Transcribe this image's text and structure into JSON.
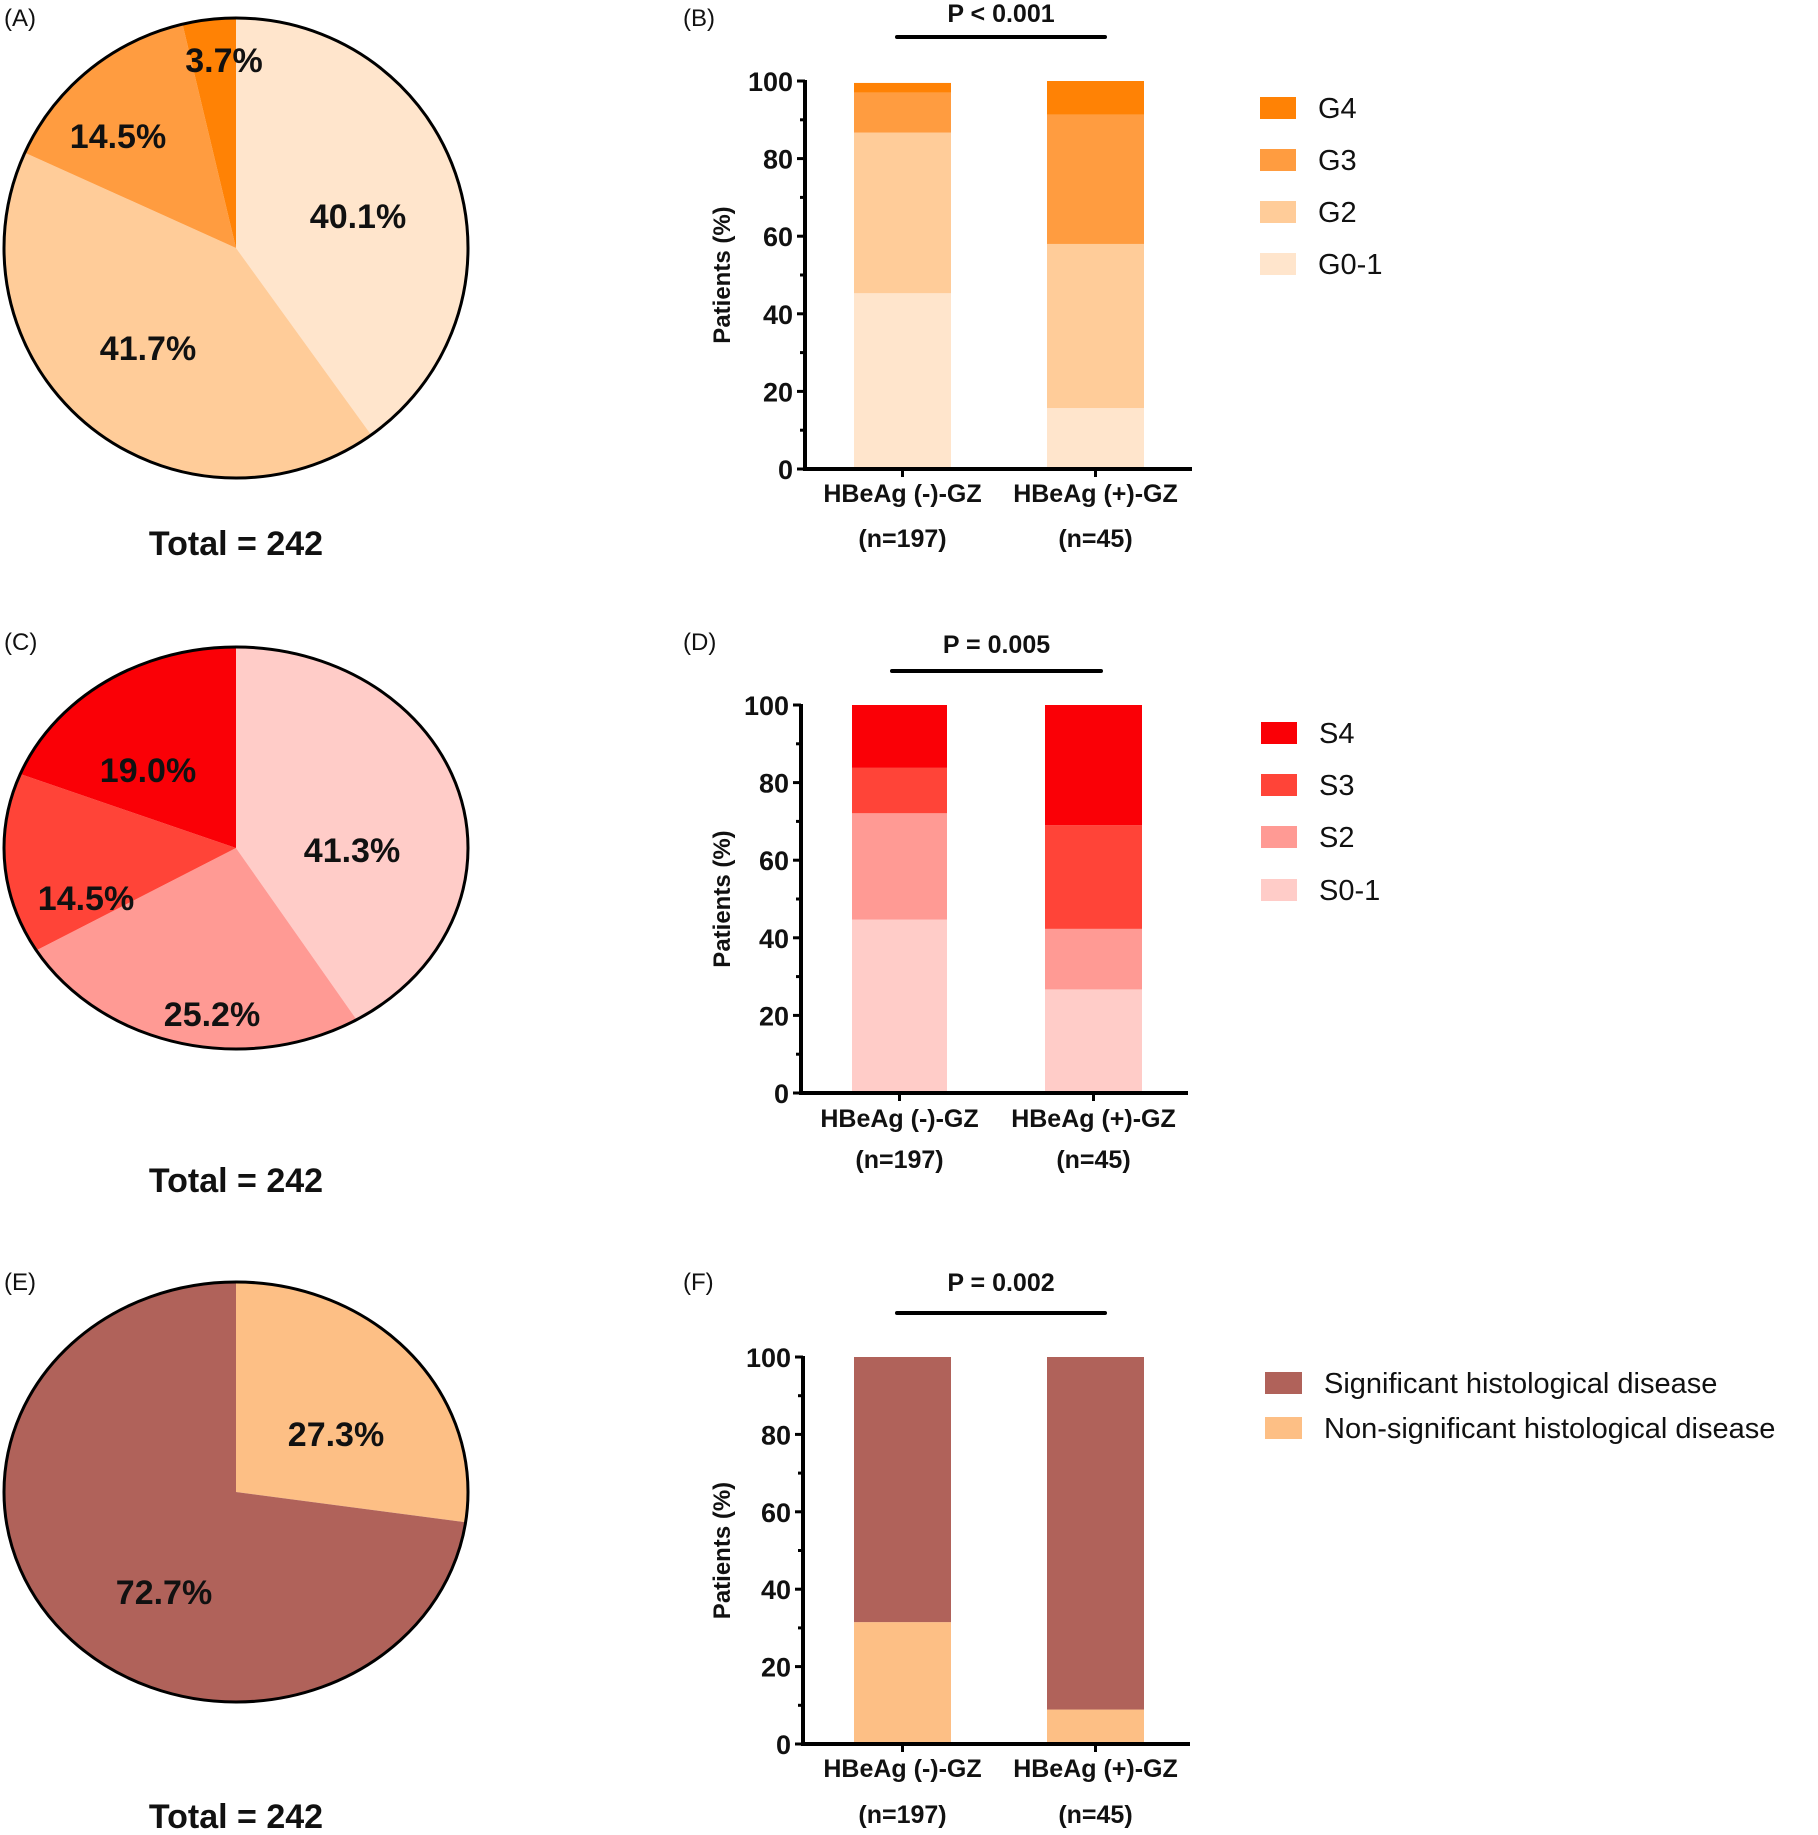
{
  "chart_data": [
    {
      "panel": "(A)",
      "type": "pie",
      "labels": [
        "G0-1",
        "G2",
        "G3",
        "G4"
      ],
      "values": [
        40.1,
        41.7,
        14.5,
        3.7
      ],
      "value_labels": [
        "40.1%",
        "41.7%",
        "14.5%",
        "3.7%"
      ],
      "colors": [
        "#FFE5CC",
        "#FFCC99",
        "#FF9C40",
        "#FF8205"
      ],
      "caption": "Total = 242"
    },
    {
      "panel": "(B)",
      "type": "bar",
      "stacked": true,
      "categories": [
        "HBeAg (-)-GZ",
        "HBeAg (+)-GZ"
      ],
      "category_sublabels": [
        "(n=197)",
        "(n=45)"
      ],
      "series": [
        {
          "name": "G0-1",
          "color": "#FFE5CC",
          "values": [
            45.3,
            15.7
          ]
        },
        {
          "name": "G2",
          "color": "#FFCC99",
          "values": [
            41.4,
            42.3
          ]
        },
        {
          "name": "G3",
          "color": "#FF9C40",
          "values": [
            10.3,
            33.3
          ]
        },
        {
          "name": "G4",
          "color": "#FF8205",
          "values": [
            2.5,
            8.7
          ]
        }
      ],
      "ylabel": "Patients (%)",
      "ylim": [
        0,
        100
      ],
      "yticks": [
        0,
        20,
        40,
        60,
        80,
        100
      ],
      "legend_order": [
        "G4",
        "G3",
        "G2",
        "G0-1"
      ],
      "legend_position": "right",
      "annotation": "P < 0.001"
    },
    {
      "panel": "(C)",
      "type": "pie",
      "labels": [
        "S0-1",
        "S2",
        "S3",
        "S4"
      ],
      "values": [
        41.3,
        25.2,
        14.5,
        19.0
      ],
      "value_labels": [
        "41.3%",
        "25.2%",
        "14.5%",
        "19.0%"
      ],
      "colors": [
        "#FFCCC8",
        "#FF9A94",
        "#FF4438",
        "#FA0006"
      ],
      "caption": "Total = 242"
    },
    {
      "panel": "(D)",
      "type": "bar",
      "stacked": true,
      "categories": [
        "HBeAg (-)-GZ",
        "HBeAg (+)-GZ"
      ],
      "category_sublabels": [
        "(n=197)",
        "(n=45)"
      ],
      "series": [
        {
          "name": "S0-1",
          "color": "#FFCCC8",
          "values": [
            44.7,
            26.7
          ]
        },
        {
          "name": "S2",
          "color": "#FF9A94",
          "values": [
            27.4,
            15.6
          ]
        },
        {
          "name": "S3",
          "color": "#FF4438",
          "values": [
            11.7,
            26.7
          ]
        },
        {
          "name": "S4",
          "color": "#FA0006",
          "values": [
            16.2,
            31.0
          ]
        }
      ],
      "ylabel": "Patients (%)",
      "ylim": [
        0,
        100
      ],
      "yticks": [
        0,
        20,
        40,
        60,
        80,
        100
      ],
      "legend_order": [
        "S4",
        "S3",
        "S2",
        "S0-1"
      ],
      "legend_position": "right",
      "annotation": "P = 0.005"
    },
    {
      "panel": "(E)",
      "type": "pie",
      "labels": [
        "Non-significant histological disease",
        "Significant histological disease"
      ],
      "values": [
        27.3,
        72.7
      ],
      "value_labels": [
        "27.3%",
        "72.7%"
      ],
      "colors": [
        "#FDBF85",
        "#B0625A"
      ],
      "caption": "Total = 242"
    },
    {
      "panel": "(F)",
      "type": "bar",
      "stacked": true,
      "categories": [
        "HBeAg (-)-GZ",
        "HBeAg (+)-GZ"
      ],
      "category_sublabels": [
        "(n=197)",
        "(n=45)"
      ],
      "series": [
        {
          "name": "Non-significant histological disease",
          "color": "#FDBF85",
          "values": [
            31.5,
            8.9
          ]
        },
        {
          "name": "Significant histological disease",
          "color": "#B0625A",
          "values": [
            68.5,
            91.1
          ]
        }
      ],
      "ylabel": "Patients (%)",
      "ylim": [
        0,
        100
      ],
      "yticks": [
        0,
        20,
        40,
        60,
        80,
        100
      ],
      "legend_order": [
        "Significant histological disease",
        "Non-significant histological disease"
      ],
      "legend_position": "right",
      "annotation": "P = 0.002"
    }
  ]
}
